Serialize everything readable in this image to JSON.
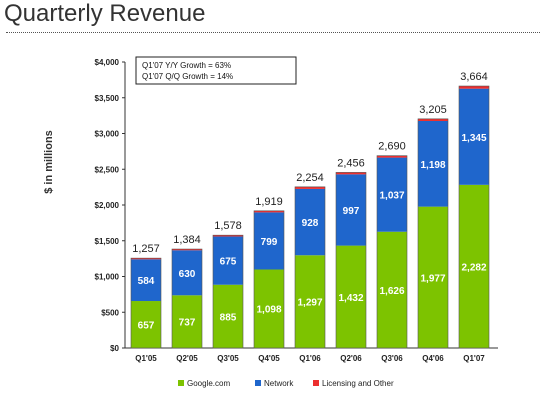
{
  "page": {
    "title": "Quarterly Revenue"
  },
  "chart_data": {
    "type": "bar",
    "stacked": true,
    "title": "",
    "xlabel": "",
    "ylabel": "$ in millions",
    "ylim": [
      0,
      4000
    ],
    "yticks": [
      "$0",
      "$500",
      "$1,000",
      "$1,500",
      "$2,000",
      "$2,500",
      "$3,000",
      "$3,500",
      "$4,000"
    ],
    "ytick_values": [
      0,
      500,
      1000,
      1500,
      2000,
      2500,
      3000,
      3500,
      4000
    ],
    "grid": false,
    "legend_position": "bottom",
    "categories": [
      "Q1'05",
      "Q2'05",
      "Q3'05",
      "Q4'05",
      "Q1'06",
      "Q2'06",
      "Q3'06",
      "Q4'06",
      "Q1'07"
    ],
    "series": [
      {
        "name": "Google.com",
        "color": "#7dc300",
        "values": [
          657,
          737,
          885,
          1098,
          1297,
          1432,
          1626,
          1977,
          2282
        ],
        "labels": [
          "657",
          "737",
          "885",
          "1,098",
          "1,297",
          "1,432",
          "1,626",
          "1,977",
          "2,282"
        ]
      },
      {
        "name": "Network",
        "color": "#1f66cc",
        "values": [
          584,
          630,
          675,
          799,
          928,
          997,
          1037,
          1198,
          1345
        ],
        "labels": [
          "584",
          "630",
          "675",
          "799",
          "928",
          "997",
          "1,037",
          "1,198",
          "1,345"
        ]
      },
      {
        "name": "Licensing and Other",
        "color": "#ec2f2f",
        "values": [
          16,
          17,
          18,
          22,
          29,
          27,
          27,
          30,
          37
        ]
      }
    ],
    "totals": [
      1257,
      1384,
      1578,
      1919,
      2254,
      2456,
      2690,
      3205,
      3664
    ],
    "total_labels": [
      "1,257",
      "1,384",
      "1,578",
      "1,919",
      "2,254",
      "2,456",
      "2,690",
      "3,205",
      "3,664"
    ],
    "annotations": [
      "Q1'07 Y/Y Growth = 63%",
      "Q1'07 Q/Q Growth = 14%"
    ]
  }
}
